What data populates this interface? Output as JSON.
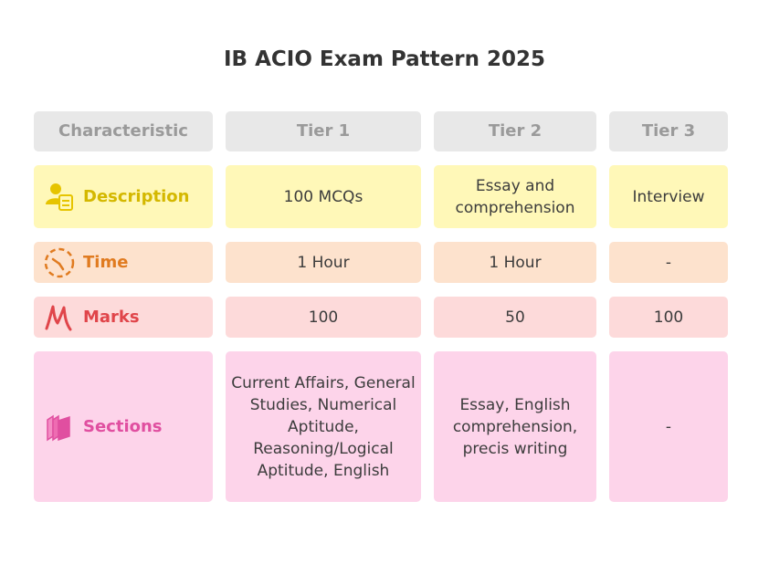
{
  "title": "IB ACIO Exam Pattern 2025",
  "headers": [
    "Characteristic",
    "Tier 1",
    "Tier 2",
    "Tier 3"
  ],
  "rows": [
    {
      "label": "Description",
      "icon": "person-document-icon",
      "color": "#d4b800",
      "bg": "#fff8b8",
      "values": [
        "100 MCQs",
        "Essay and comprehension",
        "Interview"
      ]
    },
    {
      "label": "Time",
      "icon": "clock-icon",
      "color": "#e07b20",
      "bg": "#fde2cd",
      "values": [
        "1 Hour",
        "1 Hour",
        "-"
      ]
    },
    {
      "label": "Marks",
      "icon": "marks-icon",
      "color": "#e0454a",
      "bg": "#fddada",
      "values": [
        "100",
        "50",
        "100"
      ]
    },
    {
      "label": "Sections",
      "icon": "books-icon",
      "color": "#e04fa0",
      "bg": "#fdd4ea",
      "values": [
        "Current Affairs, General Studies, Numerical Aptitude, Reasoning/Logical Aptitude, English",
        "Essay, English comprehension, precis writing",
        "-"
      ]
    }
  ]
}
